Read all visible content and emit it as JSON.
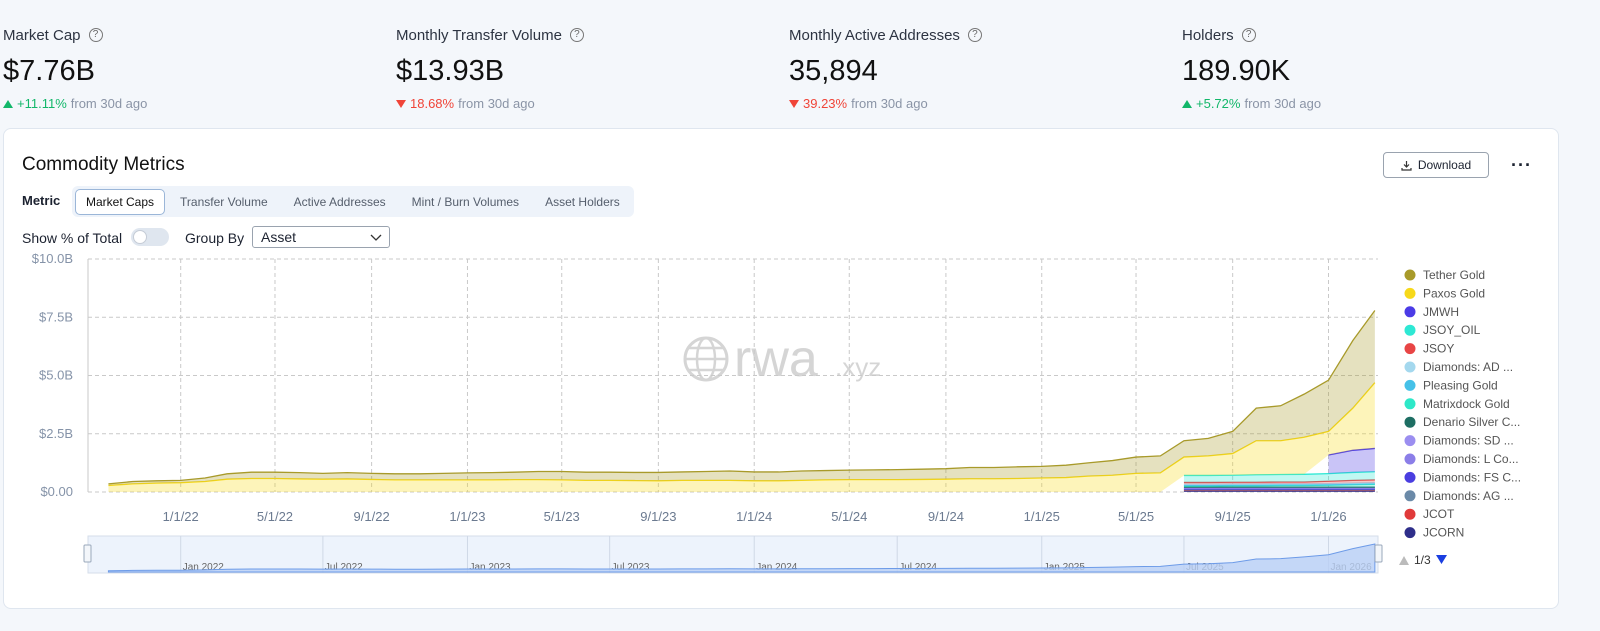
{
  "stats": [
    {
      "label": "Market Cap",
      "value": "$7.76B",
      "change": "+11.11%",
      "note": "from 30d ago",
      "direction": "up"
    },
    {
      "label": "Monthly Transfer Volume",
      "value": "$13.93B",
      "change": "18.68%",
      "note": "from 30d ago",
      "direction": "down"
    },
    {
      "label": "Monthly Active Addresses",
      "value": "35,894",
      "change": "39.23%",
      "note": "from 30d ago",
      "direction": "down"
    },
    {
      "label": "Holders",
      "value": "189.90K",
      "change": "+5.72%",
      "note": "from 30d ago",
      "direction": "up"
    }
  ],
  "panel": {
    "title": "Commodity Metrics",
    "download": "Download",
    "metric_label": "Metric",
    "tabs": [
      "Market Caps",
      "Transfer Volume",
      "Active Addresses",
      "Mint / Burn Volumes",
      "Asset Holders"
    ],
    "active_tab": 0,
    "percent_toggle": "Show % of Total",
    "percent_on": false,
    "group_by_label": "Group By",
    "group_by": "Asset"
  },
  "chart_data": {
    "type": "stacked_area",
    "watermark": "rwa",
    "watermark_suffix": ".xyz",
    "legend_page": "1/3",
    "grid": true,
    "x": [
      "2021-10-01",
      "2021-11-01",
      "2021-12-01",
      "2022-01-01",
      "2022-02-01",
      "2022-03-01",
      "2022-04-01",
      "2022-05-01",
      "2022-06-01",
      "2022-07-01",
      "2022-08-01",
      "2022-09-01",
      "2022-10-01",
      "2022-11-01",
      "2022-12-01",
      "2023-01-01",
      "2023-02-01",
      "2023-03-01",
      "2023-04-01",
      "2023-05-01",
      "2023-06-01",
      "2023-07-01",
      "2023-08-01",
      "2023-09-01",
      "2023-10-01",
      "2023-11-01",
      "2023-12-01",
      "2024-01-01",
      "2024-02-01",
      "2024-03-01",
      "2024-04-01",
      "2024-05-01",
      "2024-06-01",
      "2024-07-01",
      "2024-08-01",
      "2024-09-01",
      "2024-10-01",
      "2024-11-01",
      "2024-12-01",
      "2025-01-01",
      "2025-02-01",
      "2025-03-01",
      "2025-04-01",
      "2025-05-01",
      "2025-06-01",
      "2025-07-01",
      "2025-08-01",
      "2025-09-01",
      "2025-10-01",
      "2025-11-01",
      "2025-12-01",
      "2026-01-01",
      "2026-02-01",
      "2026-03-01"
    ],
    "xlim": [
      "2021-09-05",
      "2026-03-05"
    ],
    "xticks": [
      {
        "value": "2022-01-01",
        "label": "1/1/22"
      },
      {
        "value": "2022-05-01",
        "label": "5/1/22"
      },
      {
        "value": "2022-09-01",
        "label": "9/1/22"
      },
      {
        "value": "2023-01-01",
        "label": "1/1/23"
      },
      {
        "value": "2023-05-01",
        "label": "5/1/23"
      },
      {
        "value": "2023-09-01",
        "label": "9/1/23"
      },
      {
        "value": "2024-01-01",
        "label": "1/1/24"
      },
      {
        "value": "2024-05-01",
        "label": "5/1/24"
      },
      {
        "value": "2024-09-01",
        "label": "9/1/24"
      },
      {
        "value": "2025-01-01",
        "label": "1/1/25"
      },
      {
        "value": "2025-05-01",
        "label": "5/1/25"
      },
      {
        "value": "2025-09-01",
        "label": "9/1/25"
      },
      {
        "value": "2026-01-01",
        "label": "1/1/26"
      }
    ],
    "ylim": [
      0,
      10
    ],
    "yticks": [
      {
        "value": 0,
        "label": "$0.00"
      },
      {
        "value": 2.5,
        "label": "$2.5B"
      },
      {
        "value": 5,
        "label": "$5.0B"
      },
      {
        "value": 7.5,
        "label": "$7.5B"
      },
      {
        "value": 10,
        "label": "$10.0B"
      }
    ],
    "navigator_ticks": [
      {
        "value": "2022-01-01",
        "label": "Jan 2022"
      },
      {
        "value": "2022-07-01",
        "label": "Jul 2022"
      },
      {
        "value": "2023-01-01",
        "label": "Jan 2023"
      },
      {
        "value": "2023-07-01",
        "label": "Jul 2023"
      },
      {
        "value": "2024-01-01",
        "label": "Jan 2024"
      },
      {
        "value": "2024-07-01",
        "label": "Jul 2024"
      },
      {
        "value": "2025-01-01",
        "label": "Jan 2025"
      },
      {
        "value": "2025-07-01",
        "label": "Jul 2025"
      },
      {
        "value": "2026-01-01",
        "label": "Jan 2026"
      }
    ],
    "series": [
      {
        "name": "Tether Gold",
        "color": "#a89a2a",
        "values": [
          0.07,
          0.1,
          0.1,
          0.1,
          0.15,
          0.23,
          0.27,
          0.27,
          0.27,
          0.25,
          0.27,
          0.26,
          0.26,
          0.26,
          0.28,
          0.3,
          0.31,
          0.32,
          0.35,
          0.36,
          0.35,
          0.35,
          0.35,
          0.36,
          0.36,
          0.38,
          0.4,
          0.38,
          0.38,
          0.4,
          0.4,
          0.41,
          0.42,
          0.43,
          0.44,
          0.45,
          0.48,
          0.48,
          0.5,
          0.5,
          0.53,
          0.57,
          0.63,
          0.7,
          0.73,
          0.7,
          0.75,
          0.95,
          1.4,
          1.5,
          1.85,
          2.2,
          2.9,
          3.1
        ]
      },
      {
        "name": "Paxos Gold",
        "color": "#f7d91a",
        "values": [
          0.28,
          0.35,
          0.38,
          0.4,
          0.45,
          0.55,
          0.58,
          0.58,
          0.56,
          0.55,
          0.56,
          0.54,
          0.52,
          0.52,
          0.52,
          0.52,
          0.52,
          0.53,
          0.53,
          0.52,
          0.5,
          0.5,
          0.49,
          0.48,
          0.5,
          0.5,
          0.5,
          0.48,
          0.48,
          0.5,
          0.52,
          0.53,
          0.53,
          0.53,
          0.54,
          0.55,
          0.57,
          0.57,
          0.58,
          0.6,
          0.62,
          0.68,
          0.72,
          0.8,
          0.82,
          0.79,
          0.84,
          0.93,
          1.46,
          1.45,
          1.59,
          1.01,
          1.81,
          2.82
        ]
      },
      {
        "name": "JMWH",
        "color": "#4b3be6",
        "values": [
          null,
          null,
          null,
          null,
          null,
          null,
          null,
          null,
          null,
          null,
          null,
          null,
          null,
          null,
          null,
          null,
          null,
          null,
          null,
          null,
          null,
          null,
          null,
          null,
          null,
          null,
          null,
          null,
          null,
          null,
          null,
          null,
          null,
          null,
          null,
          null,
          null,
          null,
          null,
          null,
          null,
          null,
          null,
          null,
          null,
          null,
          null,
          null,
          null,
          null,
          null,
          0.8,
          0.95,
          1.0
        ]
      },
      {
        "name": "JSOY_OIL",
        "color": "#2ee8d4",
        "values": [
          null,
          null,
          null,
          null,
          null,
          null,
          null,
          null,
          null,
          null,
          null,
          null,
          null,
          null,
          null,
          null,
          null,
          null,
          null,
          null,
          null,
          null,
          null,
          null,
          null,
          null,
          null,
          null,
          null,
          null,
          null,
          null,
          null,
          null,
          null,
          null,
          null,
          null,
          null,
          null,
          null,
          null,
          null,
          null,
          null,
          0.3,
          0.3,
          0.3,
          0.32,
          0.32,
          0.33,
          0.33,
          0.34,
          0.35
        ]
      },
      {
        "name": "JSOY",
        "color": "#e84545",
        "values": [
          null,
          null,
          null,
          null,
          null,
          null,
          null,
          null,
          null,
          null,
          null,
          null,
          null,
          null,
          null,
          null,
          null,
          null,
          null,
          null,
          null,
          null,
          null,
          null,
          null,
          null,
          null,
          null,
          null,
          null,
          null,
          null,
          null,
          null,
          null,
          null,
          null,
          null,
          null,
          null,
          null,
          null,
          null,
          null,
          null,
          0.08,
          0.08,
          0.08,
          0.08,
          0.08,
          0.08,
          0.1,
          0.12,
          0.12
        ]
      },
      {
        "name": "Diamonds: AD ...",
        "color": "#a4d8ee",
        "values": [
          null,
          null,
          null,
          null,
          null,
          null,
          null,
          null,
          null,
          null,
          null,
          null,
          null,
          null,
          null,
          null,
          null,
          null,
          null,
          null,
          null,
          null,
          null,
          null,
          null,
          null,
          null,
          null,
          null,
          null,
          null,
          null,
          null,
          null,
          null,
          null,
          null,
          null,
          null,
          null,
          null,
          null,
          null,
          null,
          null,
          0.04,
          0.04,
          0.04,
          0.04,
          0.04,
          0.04,
          0.04,
          0.04,
          0.04
        ]
      },
      {
        "name": "Pleasing Gold",
        "color": "#46c1e8",
        "values": [
          null,
          null,
          null,
          null,
          null,
          null,
          null,
          null,
          null,
          null,
          null,
          null,
          null,
          null,
          null,
          null,
          null,
          null,
          null,
          null,
          null,
          null,
          null,
          null,
          null,
          null,
          null,
          null,
          null,
          null,
          null,
          null,
          null,
          null,
          null,
          null,
          null,
          null,
          null,
          null,
          null,
          null,
          null,
          null,
          null,
          0.03,
          0.03,
          0.03,
          0.03,
          0.03,
          0.03,
          0.03,
          0.03,
          0.03
        ]
      },
      {
        "name": "Matrixdock Gold",
        "color": "#2ee8c8",
        "values": [
          null,
          null,
          null,
          null,
          null,
          null,
          null,
          null,
          null,
          null,
          null,
          null,
          null,
          null,
          null,
          null,
          null,
          null,
          null,
          null,
          null,
          null,
          null,
          null,
          null,
          null,
          null,
          null,
          null,
          null,
          null,
          null,
          null,
          null,
          null,
          null,
          null,
          null,
          null,
          null,
          null,
          null,
          null,
          null,
          null,
          0.05,
          0.05,
          0.06,
          0.06,
          0.07,
          0.07,
          0.08,
          0.1,
          0.12
        ]
      },
      {
        "name": "Denario Silver C...",
        "color": "#1e6e63",
        "values": [
          null,
          null,
          null,
          null,
          null,
          null,
          null,
          null,
          null,
          null,
          null,
          null,
          null,
          null,
          null,
          null,
          null,
          null,
          null,
          null,
          null,
          null,
          null,
          null,
          null,
          null,
          null,
          null,
          null,
          null,
          null,
          null,
          null,
          null,
          null,
          null,
          null,
          null,
          null,
          null,
          null,
          null,
          null,
          null,
          null,
          0.02,
          0.02,
          0.02,
          0.02,
          0.02,
          0.02,
          0.02,
          0.02,
          0.02
        ]
      },
      {
        "name": "Diamonds: SD ...",
        "color": "#9b8ef0",
        "values": [
          null,
          null,
          null,
          null,
          null,
          null,
          null,
          null,
          null,
          null,
          null,
          null,
          null,
          null,
          null,
          null,
          null,
          null,
          null,
          null,
          null,
          null,
          null,
          null,
          null,
          null,
          null,
          null,
          null,
          null,
          null,
          null,
          null,
          null,
          null,
          null,
          null,
          null,
          null,
          null,
          null,
          null,
          null,
          null,
          null,
          0.03,
          0.03,
          0.03,
          0.03,
          0.03,
          0.03,
          0.03,
          0.03,
          0.03
        ]
      },
      {
        "name": "Diamonds: L Co...",
        "color": "#8b7ee8",
        "values": [
          null,
          null,
          null,
          null,
          null,
          null,
          null,
          null,
          null,
          null,
          null,
          null,
          null,
          null,
          null,
          null,
          null,
          null,
          null,
          null,
          null,
          null,
          null,
          null,
          null,
          null,
          null,
          null,
          null,
          null,
          null,
          null,
          null,
          null,
          null,
          null,
          null,
          null,
          null,
          null,
          null,
          null,
          null,
          null,
          null,
          0.03,
          0.03,
          0.03,
          0.03,
          0.03,
          0.03,
          0.03,
          0.03,
          0.03
        ]
      },
      {
        "name": "Diamonds: FS C...",
        "color": "#4a3ee0",
        "values": [
          null,
          null,
          null,
          null,
          null,
          null,
          null,
          null,
          null,
          null,
          null,
          null,
          null,
          null,
          null,
          null,
          null,
          null,
          null,
          null,
          null,
          null,
          null,
          null,
          null,
          null,
          null,
          null,
          null,
          null,
          null,
          null,
          null,
          null,
          null,
          null,
          null,
          null,
          null,
          null,
          null,
          null,
          null,
          null,
          null,
          0.03,
          0.03,
          0.03,
          0.03,
          0.03,
          0.03,
          0.03,
          0.03,
          0.03
        ]
      },
      {
        "name": "Diamonds: AG ...",
        "color": "#6b8aa8",
        "values": [
          null,
          null,
          null,
          null,
          null,
          null,
          null,
          null,
          null,
          null,
          null,
          null,
          null,
          null,
          null,
          null,
          null,
          null,
          null,
          null,
          null,
          null,
          null,
          null,
          null,
          null,
          null,
          null,
          null,
          null,
          null,
          null,
          null,
          null,
          null,
          null,
          null,
          null,
          null,
          null,
          null,
          null,
          null,
          null,
          null,
          0.02,
          0.02,
          0.02,
          0.02,
          0.02,
          0.02,
          0.02,
          0.02,
          0.02
        ]
      },
      {
        "name": "JCOT",
        "color": "#e03a3a",
        "values": [
          null,
          null,
          null,
          null,
          null,
          null,
          null,
          null,
          null,
          null,
          null,
          null,
          null,
          null,
          null,
          null,
          null,
          null,
          null,
          null,
          null,
          null,
          null,
          null,
          null,
          null,
          null,
          null,
          null,
          null,
          null,
          null,
          null,
          null,
          null,
          null,
          null,
          null,
          null,
          null,
          null,
          null,
          null,
          null,
          null,
          0.04,
          0.04,
          0.04,
          0.04,
          0.04,
          0.04,
          0.04,
          0.04,
          0.04
        ]
      },
      {
        "name": "JCORN",
        "color": "#2e2e8a",
        "values": [
          null,
          null,
          null,
          null,
          null,
          null,
          null,
          null,
          null,
          null,
          null,
          null,
          null,
          null,
          null,
          null,
          null,
          null,
          null,
          null,
          null,
          null,
          null,
          null,
          null,
          null,
          null,
          null,
          null,
          null,
          null,
          null,
          null,
          null,
          null,
          null,
          null,
          null,
          null,
          null,
          null,
          null,
          null,
          null,
          null,
          0.04,
          0.04,
          0.04,
          0.04,
          0.04,
          0.04,
          0.04,
          0.04,
          0.04
        ]
      }
    ]
  }
}
